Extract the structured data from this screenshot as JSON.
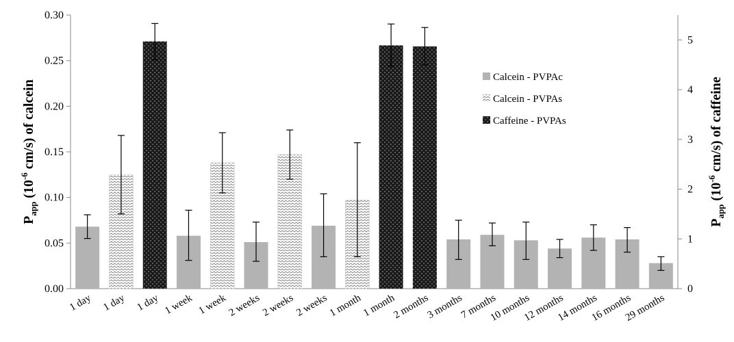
{
  "chart_data": {
    "type": "bar",
    "categories": [
      "1 day",
      "1 day",
      "1 day",
      "1 week",
      "1 week",
      "2 weeks",
      "2 weeks",
      "2 weeks",
      "1 month",
      "1 month",
      "2 months",
      "3 months",
      "7 months",
      "10 months",
      "12 months",
      "14 months",
      "16 months",
      "29 months"
    ],
    "bars": [
      {
        "series": "Calcein - PVPAc",
        "axis": "left",
        "value": 0.068,
        "err_low": 0.055,
        "err_high": 0.081
      },
      {
        "series": "Calcein - PVPAs",
        "axis": "left",
        "value": 0.125,
        "err_low": 0.082,
        "err_high": 0.168
      },
      {
        "series": "Caffeine - PVPAs",
        "axis": "right",
        "value": 4.97,
        "err_low": 4.6,
        "err_high": 5.33
      },
      {
        "series": "Calcein - PVPAc",
        "axis": "left",
        "value": 0.058,
        "err_low": 0.031,
        "err_high": 0.086
      },
      {
        "series": "Calcein - PVPAs",
        "axis": "left",
        "value": 0.138,
        "err_low": 0.105,
        "err_high": 0.171
      },
      {
        "series": "Calcein - PVPAc",
        "axis": "left",
        "value": 0.051,
        "err_low": 0.03,
        "err_high": 0.073
      },
      {
        "series": "Calcein - PVPAs",
        "axis": "left",
        "value": 0.147,
        "err_low": 0.12,
        "err_high": 0.174
      },
      {
        "series": "Calcein - PVPAc",
        "axis": "left",
        "value": 0.069,
        "err_low": 0.035,
        "err_high": 0.104
      },
      {
        "series": "Calcein - PVPAs",
        "axis": "left",
        "value": 0.097,
        "err_low": 0.035,
        "err_high": 0.16
      },
      {
        "series": "Caffeine - PVPAs",
        "axis": "right",
        "value": 4.89,
        "err_low": 4.47,
        "err_high": 5.32
      },
      {
        "series": "Caffeine - PVPAs",
        "axis": "right",
        "value": 4.87,
        "err_low": 4.5,
        "err_high": 5.25
      },
      {
        "series": "Calcein - PVPAc",
        "axis": "left",
        "value": 0.054,
        "err_low": 0.032,
        "err_high": 0.075
      },
      {
        "series": "Calcein - PVPAc",
        "axis": "left",
        "value": 0.059,
        "err_low": 0.047,
        "err_high": 0.072
      },
      {
        "series": "Calcein - PVPAc",
        "axis": "left",
        "value": 0.053,
        "err_low": 0.032,
        "err_high": 0.073
      },
      {
        "series": "Calcein - PVPAc",
        "axis": "left",
        "value": 0.044,
        "err_low": 0.034,
        "err_high": 0.054
      },
      {
        "series": "Calcein - PVPAc",
        "axis": "left",
        "value": 0.056,
        "err_low": 0.042,
        "err_high": 0.07
      },
      {
        "series": "Calcein - PVPAc",
        "axis": "left",
        "value": 0.054,
        "err_low": 0.04,
        "err_high": 0.067
      },
      {
        "series": "Calcein - PVPAc",
        "axis": "left",
        "value": 0.028,
        "err_low": 0.02,
        "err_high": 0.035
      }
    ],
    "left_axis": {
      "label_main": "P",
      "label_sub": "app",
      "label_open": " (10",
      "label_exp": "-6",
      "label_rest": " cm/s) of calcein",
      "ylim": [
        0,
        0.3
      ],
      "ticks": [
        "0.00",
        "0.05",
        "0.10",
        "0.15",
        "0.20",
        "0.25",
        "0.30"
      ]
    },
    "right_axis": {
      "label_main": "P",
      "label_sub": "app",
      "label_open": " (10",
      "label_exp": "-6",
      "label_rest": " cm/s) of caffeine",
      "ylim": [
        0,
        5.5
      ],
      "ticks": [
        "0",
        "1",
        "2",
        "3",
        "4",
        "5"
      ]
    },
    "legend": {
      "position": "top-right",
      "entries": [
        {
          "label": "Calcein - PVPAc",
          "pattern": "solid-gray"
        },
        {
          "label": "Calcein - PVPAs",
          "pattern": "zigzag"
        },
        {
          "label": "Caffeine - PVPAs",
          "pattern": "dark-checker"
        }
      ]
    },
    "colors": {
      "calcein_pvpac": "#b3b3b3",
      "caffeine_dark": "#1a1a1a",
      "axis": "#888888"
    },
    "grid": false
  }
}
